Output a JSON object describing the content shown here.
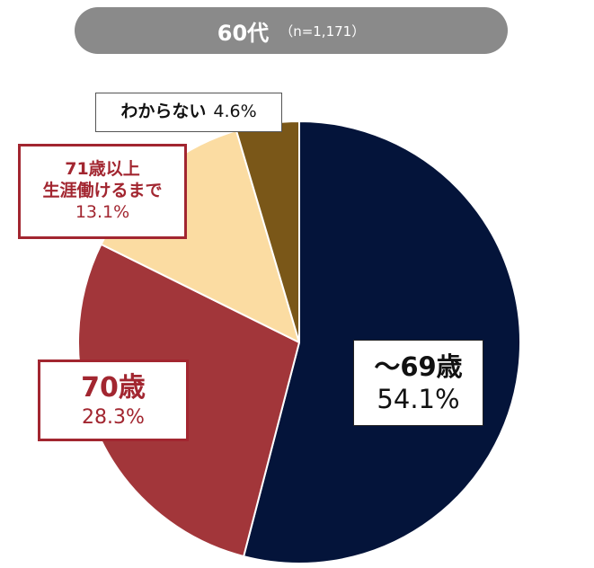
{
  "header": {
    "title": "60代",
    "n_label": "（n=1,171）"
  },
  "colors": {
    "header_bg": "#8a8a8a",
    "slice_69": "#04143a",
    "slice_70": "#a2363a",
    "slice_71": "#fbdca2",
    "slice_unknown": "#7a5718",
    "label_red": "#a22630"
  },
  "chart_data": {
    "type": "pie",
    "title": "60代",
    "subtitle": "（n=1,171）",
    "slices": [
      {
        "label": "～69歳",
        "value": 54.1,
        "display": "54.1%"
      },
      {
        "label": "70歳",
        "value": 28.3,
        "display": "28.3%"
      },
      {
        "label": "71歳以上生涯働けるまで",
        "label_lines": [
          "71歳以上",
          "生涯働けるまで"
        ],
        "value": 13.1,
        "display": "13.1%"
      },
      {
        "label": "わからない",
        "value": 4.6,
        "display": "4.6%"
      }
    ],
    "start": "12 o'clock",
    "direction": "clockwise",
    "legend": "none (callout labels)"
  }
}
